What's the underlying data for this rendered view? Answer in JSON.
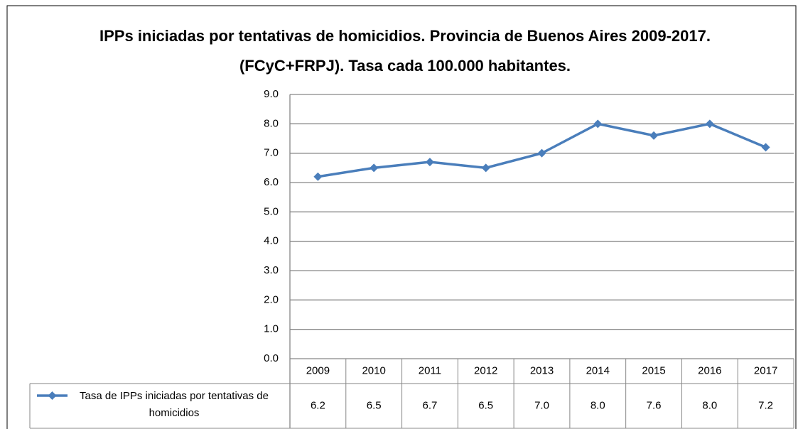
{
  "chart_data": {
    "type": "line",
    "title": "IPPs iniciadas por tentativas de homicidios. Provincia de Buenos Aires 2009-2017. (FCyC+FRPJ). Tasa cada 100.000 habitantes.",
    "categories": [
      "2009",
      "2010",
      "2011",
      "2012",
      "2013",
      "2014",
      "2015",
      "2016",
      "2017"
    ],
    "series": [
      {
        "name": "Tasa de IPPs iniciadas por tentativas de homicidios",
        "color": "#4a7ebb",
        "values": [
          6.2,
          6.5,
          6.7,
          6.5,
          7.0,
          8.0,
          7.6,
          8.0,
          7.2
        ],
        "value_labels": [
          "6.2",
          "6.5",
          "6.7",
          "6.5",
          "7.0",
          "8.0",
          "7.6",
          "8.0",
          "7.2"
        ]
      }
    ],
    "ylim": [
      0,
      9
    ],
    "yticks": [
      {
        "value": 0,
        "label": "0.0"
      },
      {
        "value": 1,
        "label": "1.0"
      },
      {
        "value": 2,
        "label": "2.0"
      },
      {
        "value": 3,
        "label": "3.0"
      },
      {
        "value": 4,
        "label": "4.0"
      },
      {
        "value": 5,
        "label": "5.0"
      },
      {
        "value": 6,
        "label": "6.0"
      },
      {
        "value": 7,
        "label": "7.0"
      },
      {
        "value": 8,
        "label": "8.0"
      },
      {
        "value": 9,
        "label": "9.0"
      }
    ],
    "grid": true,
    "legend": "bottom"
  }
}
